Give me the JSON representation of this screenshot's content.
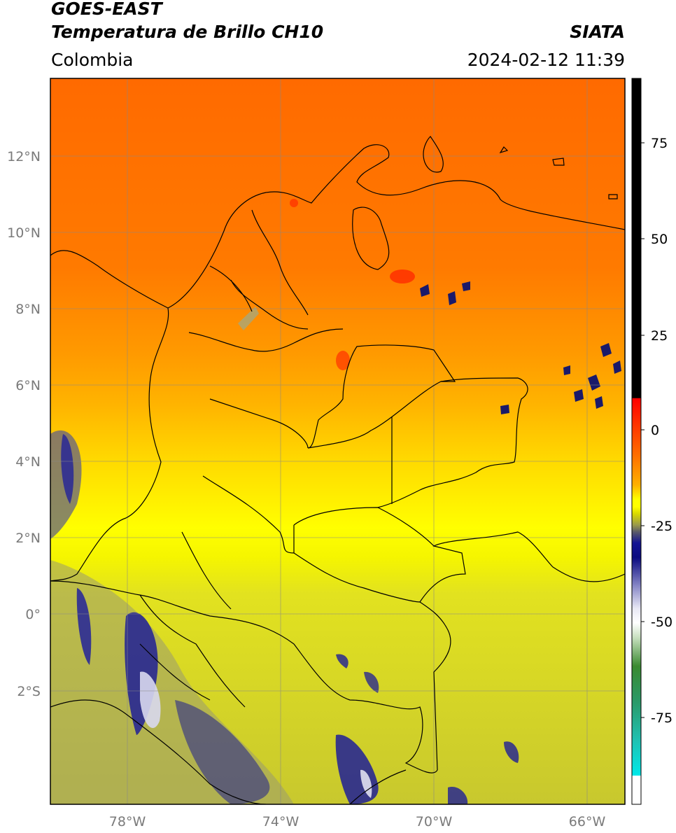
{
  "header": {
    "satellite": "GOES-EAST",
    "product": "Temperatura de Brillo CH10",
    "region": "Colombia",
    "brand": "SIATA",
    "timestamp": "2024-02-12 11:39"
  },
  "map": {
    "lat_labels": [
      "12°N",
      "10°N",
      "8°N",
      "6°N",
      "4°N",
      "2°N",
      "0°",
      "2°S"
    ],
    "lon_labels": [
      "78°W",
      "74°W",
      "70°W",
      "66°W"
    ],
    "extent": {
      "lon_min": -80,
      "lon_max": -65,
      "lat_min": -5,
      "lat_max": 14
    }
  },
  "colorbar": {
    "tick_labels": [
      "75",
      "50",
      "25",
      "0",
      "-25",
      "-50",
      "-75"
    ],
    "range": [
      -95,
      90
    ],
    "colors": {
      "warm": "#000000",
      "hot": "#ff0000",
      "mid": "#ffff00",
      "cold": "#0a0a8a",
      "coldest": "#00e0e0"
    }
  }
}
